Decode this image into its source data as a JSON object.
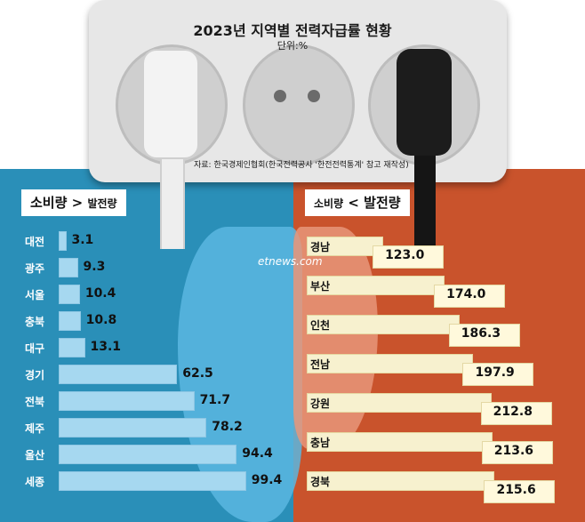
{
  "chart_data": {
    "type": "bar",
    "title": "2023년 지역별 전력자급률 현황",
    "unit": "단위:%",
    "source": "자료: 한국경제인협회(한국전력공사 '한전전력통계' 참고 재작성)",
    "watermark": "etnews.com",
    "left_panel": {
      "heading_prefix": "소비량",
      "heading_symbol": ">",
      "heading_suffix": "발전량",
      "categories": [
        "대전",
        "광주",
        "서울",
        "충북",
        "대구",
        "경기",
        "전북",
        "제주",
        "울산",
        "세종"
      ],
      "values": [
        3.1,
        9.3,
        10.4,
        10.8,
        13.1,
        62.5,
        71.7,
        78.2,
        94.4,
        99.4
      ],
      "value_labels": [
        "3.1",
        "9.3",
        "10.4",
        "10.8",
        "13.1",
        "62.5",
        "71.7",
        "78.2",
        "94.4",
        "99.4"
      ],
      "bar_color": "#a6d8f0"
    },
    "right_panel": {
      "heading_prefix": "소비량",
      "heading_symbol": "<",
      "heading_suffix": "발전량",
      "categories": [
        "경남",
        "부산",
        "인천",
        "전남",
        "강원",
        "충남",
        "경북"
      ],
      "values": [
        123.0,
        174.0,
        186.3,
        197.9,
        212.8,
        213.6,
        215.6
      ],
      "value_labels": [
        "123.0",
        "174.0",
        "186.3",
        "197.9",
        "212.8",
        "213.6",
        "215.6"
      ],
      "bar_color": "#f7f1cf"
    },
    "colors": {
      "left_bg": "#2a8fb8",
      "right_bg": "#c9532c"
    }
  }
}
